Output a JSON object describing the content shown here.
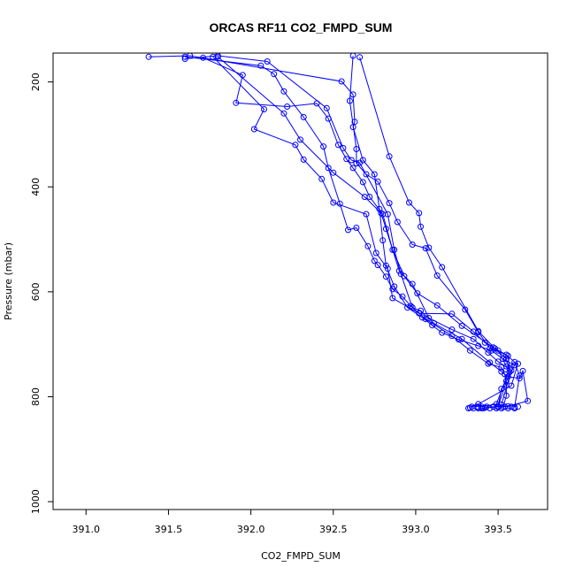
{
  "chart_data": {
    "type": "line",
    "title": "ORCAS RF11 CO2_FMPD_SUM",
    "xlabel": "CO2_FMPD_SUM",
    "ylabel": "Pressure (mbar)",
    "xlim": [
      390.8,
      393.8
    ],
    "ylim": [
      1015,
      145
    ],
    "y_axis_inverted": true,
    "grid": false,
    "legend": "none",
    "x_ticks": [
      391.0,
      391.5,
      392.0,
      392.5,
      393.0,
      393.5
    ],
    "x_tick_labels": [
      "391.0",
      "391.5",
      "392.0",
      "392.5",
      "393.0",
      "393.5"
    ],
    "y_ticks": [
      200,
      400,
      600,
      800,
      1000
    ],
    "y_tick_labels": [
      "200",
      "400",
      "600",
      "800",
      "1000"
    ],
    "marker": "open-circle",
    "color": "#0000ff",
    "series": [
      {
        "points": [
          [
            391.38,
            152
          ],
          [
            391.63,
            150
          ],
          [
            392.55,
            199
          ],
          [
            392.62,
            224
          ],
          [
            392.63,
            276
          ],
          [
            392.62,
            286
          ],
          [
            392.68,
            349
          ],
          [
            392.75,
            376
          ],
          [
            392.78,
            442
          ],
          [
            392.8,
            502
          ],
          [
            392.82,
            550
          ],
          [
            392.87,
            590
          ],
          [
            392.95,
            630
          ],
          [
            393.04,
            649
          ],
          [
            393.1,
            664
          ],
          [
            393.16,
            678
          ],
          [
            393.26,
            691
          ],
          [
            393.38,
            703
          ],
          [
            393.46,
            712
          ],
          [
            393.53,
            728
          ],
          [
            393.6,
            740
          ],
          [
            393.55,
            770
          ],
          [
            393.52,
            785
          ],
          [
            393.5,
            820
          ]
        ]
      },
      {
        "points": [
          [
            391.6,
            156
          ],
          [
            391.8,
            150
          ],
          [
            392.1,
            161
          ],
          [
            392.46,
            250
          ],
          [
            392.56,
            326
          ],
          [
            392.61,
            349
          ],
          [
            392.66,
            354
          ],
          [
            392.83,
            452
          ],
          [
            392.87,
            520
          ],
          [
            392.91,
            566
          ],
          [
            392.98,
            630
          ],
          [
            393.03,
            636
          ],
          [
            393.11,
            660
          ],
          [
            393.28,
            690
          ],
          [
            393.45,
            735
          ],
          [
            393.52,
            752
          ],
          [
            393.56,
            762
          ],
          [
            393.63,
            765
          ],
          [
            393.65,
            751
          ],
          [
            393.68,
            808
          ],
          [
            393.56,
            818
          ],
          [
            393.42,
            821
          ]
        ]
      },
      {
        "points": [
          [
            391.6,
            152
          ],
          [
            392.06,
            169
          ],
          [
            392.14,
            185
          ],
          [
            392.2,
            218
          ],
          [
            392.32,
            267
          ],
          [
            392.44,
            323
          ],
          [
            392.47,
            364
          ],
          [
            392.54,
            432
          ],
          [
            392.59,
            482
          ],
          [
            392.64,
            478
          ],
          [
            392.71,
            513
          ],
          [
            392.75,
            541
          ],
          [
            392.77,
            549
          ],
          [
            392.82,
            571
          ],
          [
            392.86,
            595
          ],
          [
            392.92,
            609
          ],
          [
            392.97,
            627
          ],
          [
            393.06,
            652
          ],
          [
            393.22,
            684
          ],
          [
            393.33,
            712
          ],
          [
            393.44,
            737
          ],
          [
            393.52,
            744
          ],
          [
            393.54,
            757
          ],
          [
            393.55,
            778
          ],
          [
            393.55,
            798
          ],
          [
            393.53,
            820
          ]
        ]
      },
      {
        "points": [
          [
            391.77,
            152
          ],
          [
            392.08,
            252
          ],
          [
            392.02,
            290
          ],
          [
            392.27,
            320
          ],
          [
            392.32,
            348
          ],
          [
            392.43,
            385
          ],
          [
            392.5,
            430
          ],
          [
            392.7,
            452
          ],
          [
            392.76,
            526
          ],
          [
            392.83,
            556
          ],
          [
            392.86,
            612
          ],
          [
            393.02,
            641
          ],
          [
            393.22,
            642
          ],
          [
            393.35,
            676
          ],
          [
            393.42,
            697
          ],
          [
            393.5,
            712
          ],
          [
            393.55,
            742
          ],
          [
            393.62,
            737
          ],
          [
            393.58,
            779
          ],
          [
            393.38,
            814
          ],
          [
            393.33,
            821
          ]
        ]
      },
      {
        "points": [
          [
            391.71,
            154
          ],
          [
            391.95,
            187
          ],
          [
            391.91,
            240
          ],
          [
            392.22,
            247
          ],
          [
            392.4,
            241
          ],
          [
            392.47,
            270
          ],
          [
            392.53,
            320
          ],
          [
            392.58,
            347
          ],
          [
            392.62,
            364
          ],
          [
            392.68,
            391
          ],
          [
            392.72,
            419
          ],
          [
            392.8,
            452
          ],
          [
            392.86,
            520
          ],
          [
            392.93,
            570
          ],
          [
            393.01,
            603
          ],
          [
            393.13,
            626
          ],
          [
            393.28,
            665
          ],
          [
            393.47,
            706
          ],
          [
            393.56,
            722
          ],
          [
            393.57,
            747
          ],
          [
            393.49,
            814
          ],
          [
            393.38,
            820
          ]
        ]
      },
      {
        "points": [
          [
            392.62,
            150
          ],
          [
            392.6,
            236
          ],
          [
            392.64,
            328
          ],
          [
            392.64,
            355
          ],
          [
            392.7,
            376
          ],
          [
            392.77,
            390
          ],
          [
            392.84,
            431
          ],
          [
            392.89,
            467
          ],
          [
            392.98,
            510
          ],
          [
            393.06,
            517
          ],
          [
            393.13,
            569
          ],
          [
            393.3,
            634
          ],
          [
            393.38,
            677
          ],
          [
            393.45,
            708
          ],
          [
            393.55,
            720
          ],
          [
            393.6,
            734
          ],
          [
            393.63,
            760
          ],
          [
            393.6,
            820
          ]
        ]
      },
      {
        "points": [
          [
            392.66,
            153
          ],
          [
            392.84,
            342
          ],
          [
            392.96,
            430
          ],
          [
            393.02,
            450
          ],
          [
            393.03,
            476
          ],
          [
            393.08,
            516
          ],
          [
            393.16,
            553
          ],
          [
            393.38,
            675
          ],
          [
            393.48,
            708
          ],
          [
            393.55,
            728
          ],
          [
            393.57,
            753
          ],
          [
            393.5,
            818
          ],
          [
            393.4,
            822
          ]
        ]
      },
      {
        "points": [
          [
            391.8,
            152
          ],
          [
            392.2,
            260
          ],
          [
            392.3,
            310
          ],
          [
            392.5,
            373
          ],
          [
            392.69,
            419
          ],
          [
            392.79,
            450
          ],
          [
            392.82,
            480
          ],
          [
            392.9,
            560
          ],
          [
            392.98,
            585
          ],
          [
            393.08,
            650
          ],
          [
            393.22,
            672
          ],
          [
            393.35,
            690
          ],
          [
            393.44,
            716
          ],
          [
            393.5,
            733
          ],
          [
            393.58,
            750
          ],
          [
            393.52,
            815
          ]
        ]
      }
    ],
    "surface_cluster": [
      393.32,
      393.34,
      393.35,
      393.37,
      393.38,
      393.4,
      393.41,
      393.43,
      393.45,
      393.47,
      393.49,
      393.5,
      393.52,
      393.54,
      393.56,
      393.58,
      393.6,
      393.62
    ],
    "surface_pressure": 822
  }
}
